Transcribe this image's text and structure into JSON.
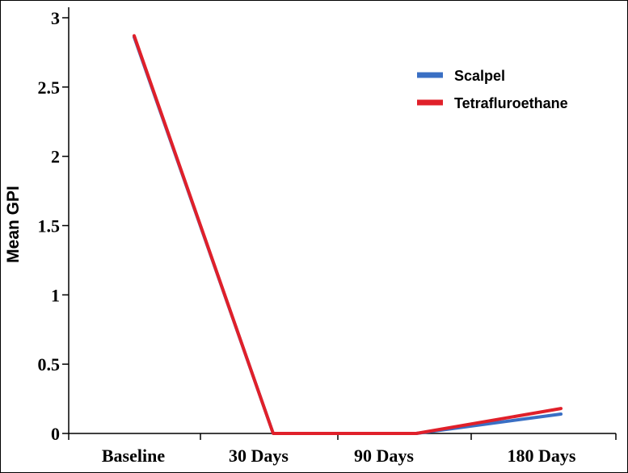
{
  "chart_data": {
    "type": "line",
    "categories": [
      "Baseline",
      "30 Days",
      "90 Days",
      "180 Days"
    ],
    "x_positions": [
      0,
      1,
      2,
      3
    ],
    "ylabel": "Mean GPI",
    "xlabel": "",
    "ylim": [
      0,
      3
    ],
    "yticks": [
      0,
      0.5,
      1,
      1.5,
      2,
      2.5,
      3
    ],
    "ytick_labels": [
      "0",
      "0.5",
      "1",
      "1.5",
      "2",
      "2.5",
      "3"
    ],
    "grid": false,
    "legend": {
      "placement": "top-right"
    },
    "series": [
      {
        "name": "Scalpel",
        "color": "#3A6FC4",
        "points": [
          [
            0,
            2.86
          ],
          [
            1,
            0
          ],
          [
            2,
            0
          ],
          [
            3,
            0.14
          ]
        ]
      },
      {
        "name": "Tetrafluroethane",
        "color": "#E0202A",
        "points": [
          [
            0,
            2.87
          ],
          [
            1,
            0
          ],
          [
            2,
            0
          ],
          [
            3,
            0.18
          ]
        ]
      }
    ]
  }
}
